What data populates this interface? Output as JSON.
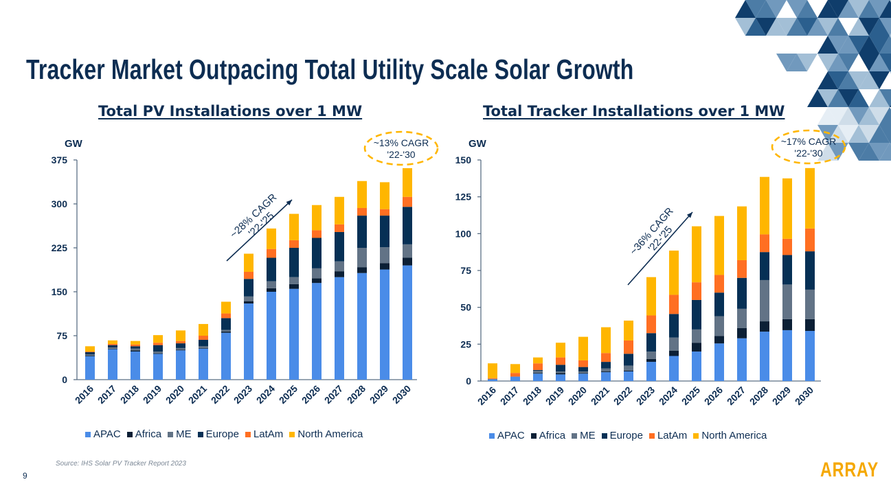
{
  "title": "Tracker Market Outpacing Total Utility Scale Solar Growth",
  "page_number": "9",
  "source": "Source: IHS Solar PV Tracker Report 2023",
  "logo": "ARRAY",
  "colors": {
    "APAC": "#4a8ce8",
    "Africa": "#0b1f35",
    "ME": "#627386",
    "Europe": "#063055",
    "LatAm": "#ff6f22",
    "North America": "#ffb600",
    "title": "#0d2d52",
    "cagr_oval": "#ffb600"
  },
  "chart_data": [
    {
      "type": "bar",
      "stacked": true,
      "title": "Total PV Installations over 1 MW",
      "ylabel": "GW",
      "ylim": [
        0,
        375
      ],
      "yticks": [
        "0",
        "75",
        "150",
        "225",
        "300",
        "375"
      ],
      "categories": [
        "2016",
        "2017",
        "2018",
        "2019",
        "2020",
        "2021",
        "2022",
        "2023",
        "2024",
        "2025",
        "2026",
        "2027",
        "2028",
        "2029",
        "2030"
      ],
      "series": [
        {
          "name": "APAC",
          "values": [
            40,
            52,
            48,
            44,
            50,
            53,
            80,
            130,
            150,
            155,
            165,
            175,
            182,
            188,
            195
          ]
        },
        {
          "name": "Africa",
          "values": [
            1,
            1,
            2,
            1,
            1,
            1,
            2,
            4,
            6,
            8,
            8,
            10,
            10,
            11,
            13
          ]
        },
        {
          "name": "ME",
          "values": [
            2,
            2,
            3,
            3,
            3,
            3,
            3,
            8,
            12,
            12,
            17,
            17,
            33,
            27,
            23
          ]
        },
        {
          "name": "Europe",
          "values": [
            4,
            4,
            4,
            11,
            8,
            11,
            20,
            30,
            40,
            50,
            52,
            50,
            55,
            54,
            64
          ]
        },
        {
          "name": "LatAm",
          "values": [
            1,
            2,
            3,
            4,
            4,
            7,
            8,
            12,
            15,
            13,
            13,
            13,
            13,
            11,
            17
          ]
        },
        {
          "name": "North America",
          "values": [
            9,
            6,
            6,
            13,
            18,
            20,
            20,
            31,
            35,
            45,
            43,
            47,
            46,
            46,
            49
          ]
        }
      ],
      "legend": "bottom",
      "annotations": {
        "arrow_cagr": [
          "~28% CAGR",
          "'22-'25"
        ],
        "oval_cagr": [
          "~13% CAGR",
          "'22-'30"
        ]
      }
    },
    {
      "type": "bar",
      "stacked": true,
      "title": "Total Tracker Installations over 1 MW",
      "ylabel": "GW",
      "ylim": [
        0,
        150
      ],
      "yticks": [
        "0",
        "25",
        "50",
        "75",
        "100",
        "125",
        "150"
      ],
      "categories": [
        "2016",
        "2017",
        "2018",
        "2019",
        "2020",
        "2021",
        "2022",
        "2023",
        "2024",
        "2025",
        "2026",
        "2027",
        "2028",
        "2029",
        "2030"
      ],
      "series": [
        {
          "name": "APAC",
          "values": [
            1,
            3,
            5,
            4.5,
            5,
            6,
            6.5,
            13,
            17,
            20,
            25.5,
            29,
            33.5,
            34.5,
            34
          ]
        },
        {
          "name": "Africa",
          "values": [
            0,
            0,
            0.5,
            1,
            0.5,
            0.5,
            0.5,
            2,
            3.5,
            6,
            5,
            7,
            7,
            7.5,
            8
          ]
        },
        {
          "name": "ME",
          "values": [
            0.5,
            0,
            1.5,
            1,
            1,
            2,
            3.5,
            5,
            9,
            9,
            13.5,
            13,
            28,
            23.5,
            20
          ]
        },
        {
          "name": "Europe",
          "values": [
            0,
            0,
            0.5,
            4.5,
            3,
            4.5,
            8,
            12.5,
            16,
            20,
            16,
            21,
            19,
            20,
            26
          ]
        },
        {
          "name": "LatAm",
          "values": [
            0.5,
            2.5,
            4.5,
            5,
            4.5,
            6,
            9,
            12,
            13,
            12,
            12,
            12,
            12,
            11,
            15.5
          ]
        },
        {
          "name": "North America",
          "values": [
            10,
            6,
            4,
            10,
            16,
            17.5,
            13.5,
            26,
            30,
            38,
            40,
            36.5,
            39,
            41,
            41
          ]
        }
      ],
      "legend": "bottom",
      "annotations": {
        "arrow_cagr": [
          "~36% CAGR",
          "'22-'25"
        ],
        "oval_cagr": [
          "~17% CAGR",
          "'22-'30"
        ]
      }
    }
  ]
}
